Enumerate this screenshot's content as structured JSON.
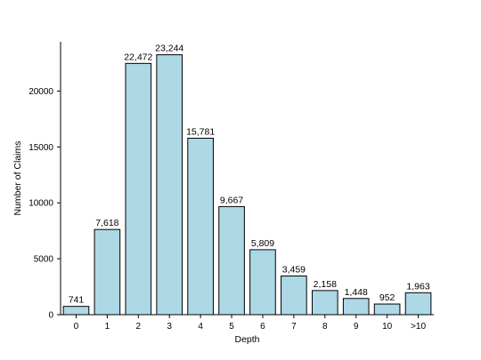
{
  "chart_data": {
    "type": "bar",
    "title": "",
    "xlabel": "Depth",
    "ylabel": "Number of Claims",
    "categories": [
      "0",
      "1",
      "2",
      "3",
      "4",
      "5",
      "6",
      "7",
      "8",
      "9",
      "10",
      ">10"
    ],
    "values": [
      741,
      7618,
      22472,
      23244,
      15781,
      9667,
      5809,
      3459,
      2158,
      1448,
      952,
      1963
    ],
    "data_labels": [
      "741",
      "7,618",
      "22,472",
      "23,244",
      "15,781",
      "9,667",
      "5,809",
      "3,459",
      "2,158",
      "1,448",
      "952",
      "1,963"
    ],
    "y_ticks": [
      0,
      5000,
      10000,
      15000,
      20000
    ],
    "y_tick_labels": [
      "0",
      "5000",
      "10000",
      "15000",
      "20000"
    ],
    "ylim": [
      0,
      24406
    ],
    "grid": false,
    "legend": "none",
    "colors": {
      "bar_fill": "#add8e6",
      "bar_edge": "#000000",
      "axis": "#000000"
    }
  }
}
